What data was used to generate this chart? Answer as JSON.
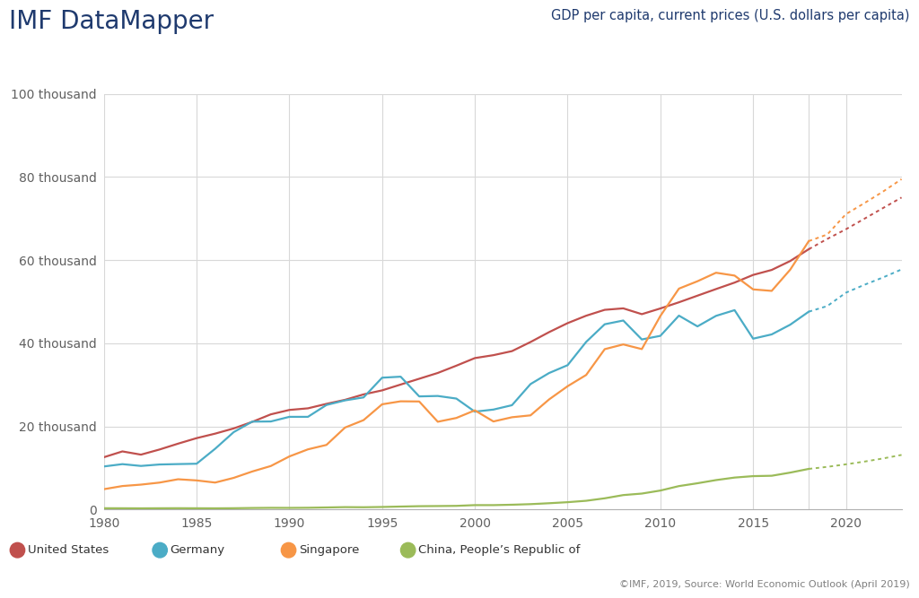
{
  "title_left": "IMF DataMapper",
  "title_right": "GDP per capita, current prices (U.S. dollars per capita)",
  "source_text": "©IMF, 2019, Source: World Economic Outlook (April 2019)",
  "background_color": "#ffffff",
  "plot_bg_color": "#ffffff",
  "grid_color": "#d8d8d8",
  "years_solid": [
    1980,
    1981,
    1982,
    1983,
    1984,
    1985,
    1986,
    1987,
    1988,
    1989,
    1990,
    1991,
    1992,
    1993,
    1994,
    1995,
    1996,
    1997,
    1998,
    1999,
    2000,
    2001,
    2002,
    2003,
    2004,
    2005,
    2006,
    2007,
    2008,
    2009,
    2010,
    2011,
    2012,
    2013,
    2014,
    2015,
    2016,
    2017,
    2018
  ],
  "years_dotted": [
    2018,
    2019,
    2020,
    2021,
    2022,
    2023
  ],
  "usa_solid": [
    12575,
    13977,
    13199,
    14433,
    15842,
    17171,
    18255,
    19509,
    21084,
    22895,
    23954,
    24342,
    25419,
    26387,
    27695,
    28661,
    30067,
    31459,
    32854,
    34602,
    36433,
    37134,
    38107,
    40296,
    42674,
    44843,
    46627,
    48045,
    48396,
    46999,
    48374,
    49855,
    51451,
    53042,
    54597,
    56443,
    57639,
    59792,
    62641
  ],
  "usa_dotted": [
    62641,
    65112,
    67426,
    69967,
    72531,
    75065
  ],
  "germany_solid": [
    10354,
    10914,
    10481,
    10830,
    10929,
    11013,
    14617,
    18619,
    21145,
    21180,
    22297,
    22296,
    25150,
    26256,
    26968,
    31714,
    31959,
    27213,
    27316,
    26694,
    23538,
    24044,
    25096,
    30178,
    32834,
    34727,
    40328,
    44571,
    45474,
    40916,
    41785,
    46648,
    44059,
    46590,
    47965,
    41103,
    42129,
    44469,
    47603
  ],
  "germany_dotted": [
    47603,
    48957,
    52163,
    54069,
    55834,
    57764
  ],
  "singapore_solid": [
    4888,
    5645,
    5987,
    6474,
    7278,
    6997,
    6483,
    7611,
    9145,
    10461,
    12766,
    14469,
    15539,
    19714,
    21503,
    25312,
    26031,
    25990,
    21113,
    22022,
    23852,
    21183,
    22197,
    22653,
    26484,
    29663,
    32370,
    38579,
    39721,
    38597,
    46569,
    53142,
    54920,
    56967,
    56284,
    52960,
    52600,
    57714,
    64581
  ],
  "singapore_dotted": [
    64581,
    66174,
    71064,
    73723,
    76491,
    79483
  ],
  "china_solid": [
    307,
    297,
    278,
    299,
    313,
    296,
    283,
    309,
    367,
    403,
    390,
    420,
    492,
    571,
    543,
    609,
    709,
    797,
    831,
    874,
    1053,
    1053,
    1148,
    1288,
    1508,
    1760,
    2099,
    2693,
    3471,
    3832,
    4560,
    5633,
    6316,
    7078,
    7683,
    8028,
    8117,
    8879,
    9771
  ],
  "china_dotted": [
    9771,
    10261,
    10870,
    11527,
    12282,
    13130
  ],
  "colors": {
    "usa": "#c0504d",
    "germany": "#4bacc6",
    "singapore": "#f79646",
    "china": "#9bbb59"
  },
  "legend_labels": [
    "United States",
    "Germany",
    "Singapore",
    "China, People’s Republic of"
  ],
  "ylim": [
    0,
    100000
  ],
  "yticks": [
    0,
    20000,
    40000,
    60000,
    80000,
    100000
  ],
  "ytick_labels": [
    "0",
    "20 thousand",
    "40 thousand",
    "60 thousand",
    "80 thousand",
    "100 thousand"
  ],
  "xticks": [
    1980,
    1985,
    1990,
    1995,
    2000,
    2005,
    2010,
    2015,
    2020
  ],
  "title_color": "#1f3a6e",
  "axis_label_color": "#606060",
  "source_color": "#808080"
}
